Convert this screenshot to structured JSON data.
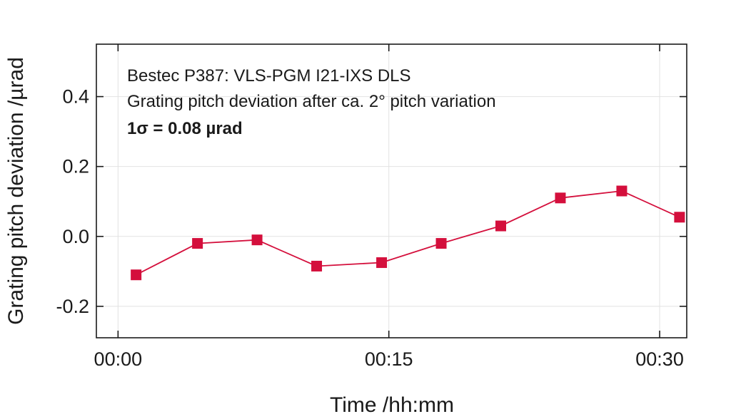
{
  "chart_data": {
    "type": "line",
    "xlabel": "Time /hh:mm",
    "ylabel": "Grating pitch deviation /µrad",
    "annotations": [
      "Bestec P387: VLS-PGM I21-IXS DLS",
      "Grating pitch deviation after ca. 2° pitch variation",
      "1σ = 0.08 µrad"
    ],
    "x_tick_labels": [
      "00:00",
      "00:15",
      "00:30"
    ],
    "x_ticks_minutes": [
      0,
      15,
      30
    ],
    "y_tick_labels": [
      "-0.2",
      "0.0",
      "0.2",
      "0.4"
    ],
    "y_ticks": [
      -0.2,
      0.0,
      0.2,
      0.4
    ],
    "xlim_minutes": [
      -1.2,
      31.5
    ],
    "ylim": [
      -0.29,
      0.55
    ],
    "grid": true,
    "series": [
      {
        "color": "#d40f3c",
        "marker": "square",
        "x_minutes": [
          1.0,
          4.4,
          7.7,
          11.0,
          14.6,
          17.9,
          21.2,
          24.5,
          27.9,
          31.1
        ],
        "y": [
          -0.11,
          -0.02,
          -0.01,
          -0.085,
          -0.075,
          -0.02,
          0.03,
          0.11,
          0.13,
          0.055
        ]
      }
    ]
  }
}
